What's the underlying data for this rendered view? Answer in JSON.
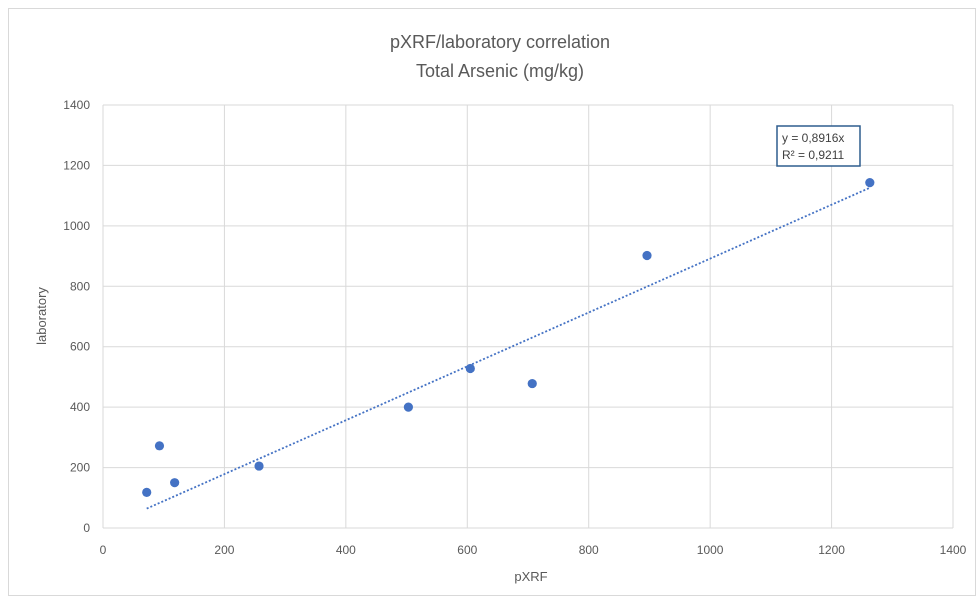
{
  "chart_data": {
    "type": "scatter",
    "title": "pXRF/laboratory correlation",
    "subtitle": "Total Arsenic (mg/kg)",
    "xlabel": "pXRF",
    "ylabel": "laboratory",
    "xlim": [
      0,
      1400
    ],
    "ylim": [
      0,
      1400
    ],
    "xticks": [
      0,
      200,
      400,
      600,
      800,
      1000,
      1200,
      1400
    ],
    "yticks": [
      0,
      200,
      400,
      600,
      800,
      1000,
      1200,
      1400
    ],
    "grid": true,
    "points": [
      {
        "x": 72,
        "y": 118
      },
      {
        "x": 93,
        "y": 272
      },
      {
        "x": 118,
        "y": 150
      },
      {
        "x": 257,
        "y": 205
      },
      {
        "x": 503,
        "y": 400
      },
      {
        "x": 605,
        "y": 528
      },
      {
        "x": 707,
        "y": 478
      },
      {
        "x": 896,
        "y": 902
      },
      {
        "x": 1263,
        "y": 1143
      }
    ],
    "trendline": {
      "type": "linear-through-origin",
      "slope": 0.8916,
      "x_range": [
        72,
        1263
      ],
      "equation_label": "y = 0,8916x",
      "r2_label": "R² = 0,9211"
    },
    "colors": {
      "points": "#4472c4",
      "trendline": "#4472c4",
      "grid": "#d9d9d9",
      "text": "#595959",
      "equation_border": "#2e5d8e"
    }
  }
}
